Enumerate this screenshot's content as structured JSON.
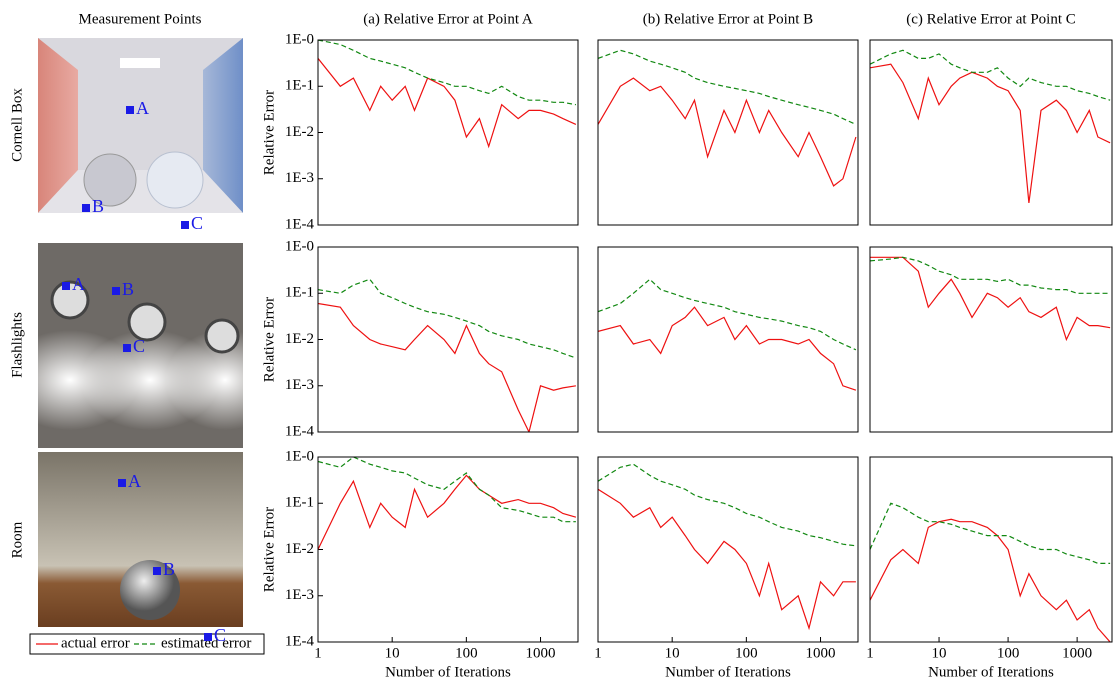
{
  "header": "Measurement Points",
  "scenes": [
    {
      "label": "Cornell Box",
      "points": [
        "A",
        "B",
        "C"
      ]
    },
    {
      "label": "Flashlights",
      "points": [
        "A",
        "B",
        "C"
      ]
    },
    {
      "label": "Room",
      "points": [
        "A",
        "B",
        "C"
      ]
    }
  ],
  "chart_data": [
    {
      "type": "line",
      "title": "(a) Relative Error at Point A",
      "y_label": "Relative Error",
      "log_x": true,
      "log_y": true,
      "xlim": [
        1,
        3200
      ],
      "ylim": [
        0.0001,
        1
      ],
      "yticks": [
        {
          "value": 1,
          "label": "1E-0"
        },
        {
          "value": 0.1,
          "label": "1E-1"
        },
        {
          "value": 0.01,
          "label": "1E-2"
        },
        {
          "value": 0.001,
          "label": "1E-3"
        },
        {
          "value": 0.0001,
          "label": "1E-4"
        }
      ],
      "x": [
        1,
        2,
        3,
        5,
        7,
        10,
        15,
        20,
        30,
        50,
        70,
        100,
        150,
        200,
        300,
        500,
        700,
        1000,
        1500,
        2000,
        3000
      ],
      "series": [
        {
          "name": "actual error",
          "color": "#ee1111",
          "dashed": false,
          "values": [
            0.4,
            0.1,
            0.15,
            0.03,
            0.1,
            0.05,
            0.1,
            0.03,
            0.15,
            0.1,
            0.05,
            0.008,
            0.02,
            0.005,
            0.04,
            0.02,
            0.03,
            0.03,
            0.025,
            0.02,
            0.015
          ]
        },
        {
          "name": "estimated error",
          "color": "#118811",
          "dashed": true,
          "values": [
            1,
            0.8,
            0.6,
            0.4,
            0.35,
            0.3,
            0.25,
            0.2,
            0.15,
            0.12,
            0.1,
            0.1,
            0.08,
            0.07,
            0.1,
            0.06,
            0.05,
            0.05,
            0.045,
            0.045,
            0.04
          ]
        }
      ]
    },
    {
      "type": "line",
      "title": "(b) Relative Error at Point B",
      "log_x": true,
      "log_y": true,
      "xlim": [
        1,
        3200
      ],
      "ylim": [
        0.0001,
        1
      ],
      "x": [
        1,
        2,
        3,
        5,
        7,
        10,
        15,
        20,
        30,
        50,
        70,
        100,
        150,
        200,
        300,
        500,
        700,
        1000,
        1500,
        2000,
        3000
      ],
      "series": [
        {
          "color": "#ee1111",
          "dashed": false,
          "values": [
            0.015,
            0.1,
            0.15,
            0.08,
            0.1,
            0.05,
            0.02,
            0.05,
            0.003,
            0.03,
            0.01,
            0.05,
            0.01,
            0.03,
            0.01,
            0.003,
            0.01,
            0.003,
            0.0007,
            0.001,
            0.008
          ]
        },
        {
          "color": "#118811",
          "dashed": true,
          "values": [
            0.4,
            0.6,
            0.5,
            0.35,
            0.3,
            0.25,
            0.2,
            0.15,
            0.12,
            0.1,
            0.09,
            0.08,
            0.07,
            0.06,
            0.05,
            0.04,
            0.035,
            0.03,
            0.025,
            0.02,
            0.015
          ]
        }
      ]
    },
    {
      "type": "line",
      "title": "(c) Relative Error at Point C",
      "log_x": true,
      "log_y": true,
      "xlim": [
        1,
        3200
      ],
      "ylim": [
        0.0001,
        1
      ],
      "x": [
        1,
        2,
        3,
        5,
        7,
        10,
        15,
        20,
        30,
        50,
        70,
        100,
        150,
        200,
        300,
        500,
        700,
        1000,
        1500,
        2000,
        3000
      ],
      "series": [
        {
          "color": "#ee1111",
          "dashed": false,
          "values": [
            0.25,
            0.3,
            0.12,
            0.02,
            0.15,
            0.04,
            0.1,
            0.15,
            0.2,
            0.15,
            0.1,
            0.08,
            0.03,
            0.0003,
            0.03,
            0.05,
            0.03,
            0.01,
            0.03,
            0.008,
            0.006
          ]
        },
        {
          "color": "#118811",
          "dashed": true,
          "values": [
            0.3,
            0.5,
            0.6,
            0.4,
            0.4,
            0.5,
            0.3,
            0.25,
            0.2,
            0.2,
            0.25,
            0.15,
            0.1,
            0.15,
            0.12,
            0.1,
            0.1,
            0.08,
            0.07,
            0.06,
            0.05
          ]
        }
      ]
    },
    {
      "type": "line",
      "y_label": "Relative Error",
      "log_x": true,
      "log_y": true,
      "xlim": [
        1,
        3200
      ],
      "ylim": [
        0.0001,
        1
      ],
      "yticks": [
        {
          "value": 1,
          "label": "1E-0"
        },
        {
          "value": 0.1,
          "label": "1E-1"
        },
        {
          "value": 0.01,
          "label": "1E-2"
        },
        {
          "value": 0.001,
          "label": "1E-3"
        },
        {
          "value": 0.0001,
          "label": "1E-4"
        }
      ],
      "x": [
        1,
        2,
        3,
        5,
        7,
        10,
        15,
        20,
        30,
        50,
        70,
        100,
        150,
        200,
        300,
        500,
        700,
        1000,
        1500,
        2000,
        3000
      ],
      "series": [
        {
          "color": "#ee1111",
          "dashed": false,
          "values": [
            0.06,
            0.05,
            0.02,
            0.01,
            0.008,
            0.007,
            0.006,
            0.01,
            0.02,
            0.01,
            0.005,
            0.02,
            0.005,
            0.003,
            0.002,
            0.0003,
            0.0001,
            0.001,
            0.0008,
            0.0009,
            0.001
          ]
        },
        {
          "color": "#118811",
          "dashed": true,
          "values": [
            0.12,
            0.1,
            0.15,
            0.2,
            0.1,
            0.08,
            0.06,
            0.05,
            0.04,
            0.035,
            0.03,
            0.025,
            0.02,
            0.015,
            0.012,
            0.01,
            0.008,
            0.007,
            0.006,
            0.005,
            0.004
          ]
        }
      ]
    },
    {
      "type": "line",
      "log_x": true,
      "log_y": true,
      "xlim": [
        1,
        3200
      ],
      "ylim": [
        0.0001,
        1
      ],
      "x": [
        1,
        2,
        3,
        5,
        7,
        10,
        15,
        20,
        30,
        50,
        70,
        100,
        150,
        200,
        300,
        500,
        700,
        1000,
        1500,
        2000,
        3000
      ],
      "series": [
        {
          "color": "#ee1111",
          "dashed": false,
          "values": [
            0.015,
            0.02,
            0.008,
            0.01,
            0.005,
            0.02,
            0.03,
            0.05,
            0.02,
            0.03,
            0.01,
            0.02,
            0.008,
            0.01,
            0.01,
            0.008,
            0.01,
            0.005,
            0.003,
            0.001,
            0.0008
          ]
        },
        {
          "color": "#118811",
          "dashed": true,
          "values": [
            0.04,
            0.06,
            0.1,
            0.2,
            0.12,
            0.1,
            0.08,
            0.07,
            0.06,
            0.05,
            0.04,
            0.035,
            0.03,
            0.028,
            0.025,
            0.02,
            0.018,
            0.015,
            0.01,
            0.008,
            0.006
          ]
        }
      ]
    },
    {
      "type": "line",
      "log_x": true,
      "log_y": true,
      "xlim": [
        1,
        3200
      ],
      "ylim": [
        0.0001,
        1
      ],
      "x": [
        1,
        2,
        3,
        5,
        7,
        10,
        15,
        20,
        30,
        50,
        70,
        100,
        150,
        200,
        300,
        500,
        700,
        1000,
        1500,
        2000,
        3000
      ],
      "series": [
        {
          "color": "#ee1111",
          "dashed": false,
          "values": [
            0.6,
            0.6,
            0.6,
            0.3,
            0.05,
            0.1,
            0.2,
            0.1,
            0.03,
            0.1,
            0.08,
            0.05,
            0.08,
            0.04,
            0.03,
            0.05,
            0.01,
            0.03,
            0.02,
            0.02,
            0.018
          ]
        },
        {
          "color": "#118811",
          "dashed": true,
          "values": [
            0.5,
            0.55,
            0.6,
            0.5,
            0.4,
            0.3,
            0.25,
            0.2,
            0.2,
            0.2,
            0.18,
            0.2,
            0.15,
            0.15,
            0.13,
            0.12,
            0.12,
            0.1,
            0.1,
            0.1,
            0.1
          ]
        }
      ]
    },
    {
      "type": "line",
      "y_label": "Relative Error",
      "x_label": "Number of Iterations",
      "log_x": true,
      "log_y": true,
      "xlim": [
        1,
        3200
      ],
      "ylim": [
        0.0001,
        1
      ],
      "xticks": [
        1,
        10,
        100,
        1000
      ],
      "yticks": [
        {
          "value": 1,
          "label": "1E-0"
        },
        {
          "value": 0.1,
          "label": "1E-1"
        },
        {
          "value": 0.01,
          "label": "1E-2"
        },
        {
          "value": 0.001,
          "label": "1E-3"
        },
        {
          "value": 0.0001,
          "label": "1E-4"
        }
      ],
      "x": [
        1,
        2,
        3,
        5,
        7,
        10,
        15,
        20,
        30,
        50,
        70,
        100,
        150,
        200,
        300,
        500,
        700,
        1000,
        1500,
        2000,
        3000
      ],
      "series": [
        {
          "color": "#ee1111",
          "dashed": false,
          "values": [
            0.01,
            0.1,
            0.3,
            0.03,
            0.1,
            0.05,
            0.03,
            0.2,
            0.05,
            0.1,
            0.2,
            0.4,
            0.2,
            0.15,
            0.1,
            0.12,
            0.1,
            0.1,
            0.08,
            0.06,
            0.05
          ]
        },
        {
          "color": "#118811",
          "dashed": true,
          "values": [
            0.8,
            0.6,
            1,
            0.7,
            0.6,
            0.5,
            0.45,
            0.35,
            0.25,
            0.2,
            0.3,
            0.45,
            0.2,
            0.15,
            0.08,
            0.07,
            0.06,
            0.05,
            0.05,
            0.04,
            0.04
          ]
        }
      ]
    },
    {
      "type": "line",
      "x_label": "Number of Iterations",
      "log_x": true,
      "log_y": true,
      "xlim": [
        1,
        3200
      ],
      "ylim": [
        0.0001,
        1
      ],
      "xticks": [
        1,
        10,
        100,
        1000
      ],
      "x": [
        1,
        2,
        3,
        5,
        7,
        10,
        15,
        20,
        30,
        50,
        70,
        100,
        150,
        200,
        300,
        500,
        700,
        1000,
        1500,
        2000,
        3000
      ],
      "series": [
        {
          "color": "#ee1111",
          "dashed": false,
          "values": [
            0.2,
            0.1,
            0.05,
            0.08,
            0.03,
            0.05,
            0.02,
            0.01,
            0.005,
            0.015,
            0.01,
            0.005,
            0.001,
            0.005,
            0.0005,
            0.001,
            0.0002,
            0.002,
            0.001,
            0.002,
            0.002
          ]
        },
        {
          "color": "#118811",
          "dashed": true,
          "values": [
            0.3,
            0.6,
            0.7,
            0.4,
            0.3,
            0.25,
            0.2,
            0.15,
            0.12,
            0.1,
            0.08,
            0.06,
            0.05,
            0.04,
            0.03,
            0.025,
            0.02,
            0.018,
            0.015,
            0.013,
            0.012
          ]
        }
      ]
    },
    {
      "type": "line",
      "x_label": "Number of Iterations",
      "log_x": true,
      "log_y": true,
      "xlim": [
        1,
        3200
      ],
      "ylim": [
        0.0001,
        1
      ],
      "xticks": [
        1,
        10,
        100,
        1000
      ],
      "x": [
        1,
        2,
        3,
        5,
        7,
        10,
        15,
        20,
        30,
        50,
        70,
        100,
        150,
        200,
        300,
        500,
        700,
        1000,
        1500,
        2000,
        3000
      ],
      "series": [
        {
          "color": "#ee1111",
          "dashed": false,
          "values": [
            0.0008,
            0.006,
            0.01,
            0.005,
            0.03,
            0.04,
            0.045,
            0.04,
            0.04,
            0.03,
            0.02,
            0.01,
            0.001,
            0.003,
            0.001,
            0.0005,
            0.0008,
            0.0003,
            0.0005,
            0.0002,
            0.0001
          ]
        },
        {
          "color": "#118811",
          "dashed": true,
          "values": [
            0.01,
            0.1,
            0.08,
            0.05,
            0.04,
            0.04,
            0.035,
            0.03,
            0.025,
            0.02,
            0.02,
            0.02,
            0.015,
            0.012,
            0.01,
            0.01,
            0.008,
            0.007,
            0.006,
            0.005,
            0.005
          ]
        }
      ]
    }
  ]
}
